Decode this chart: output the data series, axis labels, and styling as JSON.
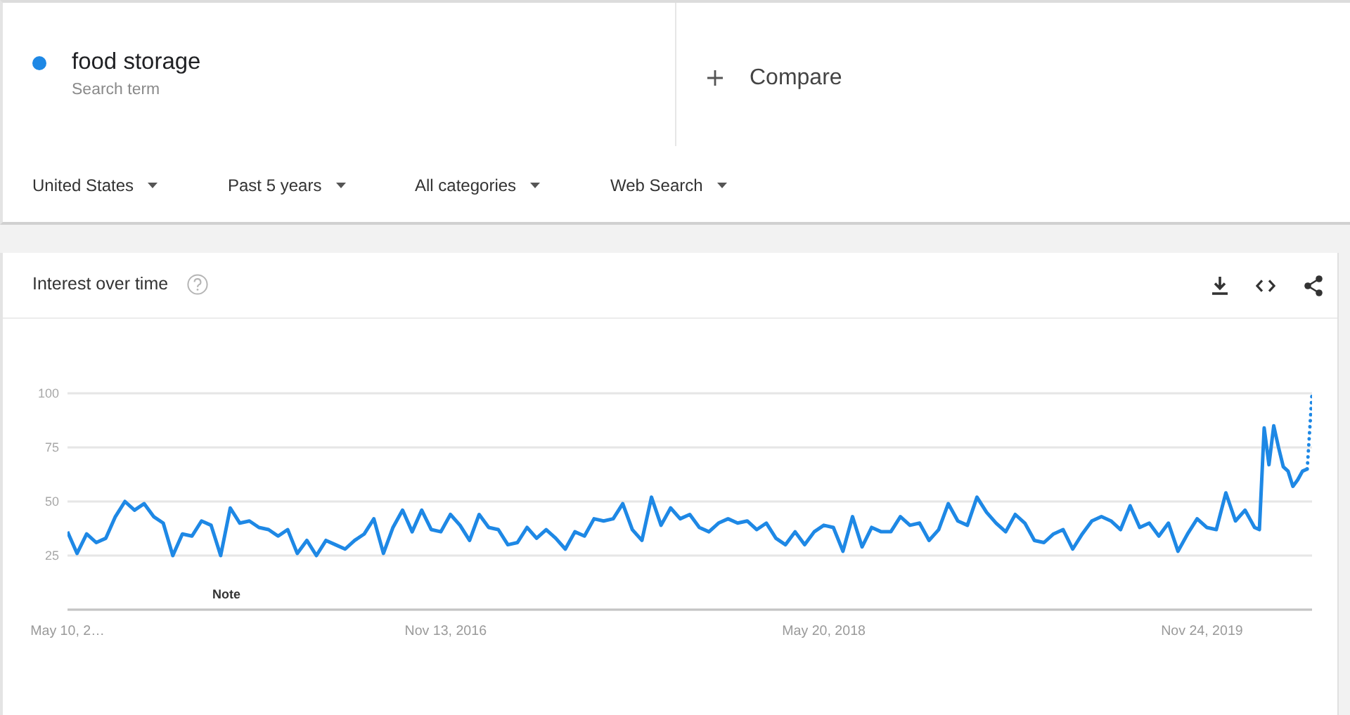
{
  "chart_data": {
    "type": "line",
    "title": "Interest over time",
    "series": [
      {
        "name": "food storage",
        "color": "#1e88e5",
        "x": [
          "2015-05-10",
          "2015-05-24",
          "2015-06-07",
          "2015-06-21",
          "2015-07-05",
          "2015-07-19",
          "2015-08-02",
          "2015-08-16",
          "2015-08-30",
          "2015-09-13",
          "2015-09-27",
          "2015-10-11",
          "2015-10-25",
          "2015-11-08",
          "2015-11-22",
          "2015-12-06",
          "2015-12-20",
          "2016-01-03",
          "2016-01-17",
          "2016-01-31",
          "2016-02-14",
          "2016-02-28",
          "2016-03-13",
          "2016-03-27",
          "2016-04-10",
          "2016-04-24",
          "2016-05-08",
          "2016-05-22",
          "2016-06-05",
          "2016-06-19",
          "2016-07-03",
          "2016-07-17",
          "2016-07-31",
          "2016-08-14",
          "2016-08-28",
          "2016-09-11",
          "2016-09-25",
          "2016-10-09",
          "2016-10-23",
          "2016-11-06",
          "2016-11-20",
          "2016-12-04",
          "2016-12-18",
          "2017-01-01",
          "2017-01-15",
          "2017-01-29",
          "2017-02-12",
          "2017-02-26",
          "2017-03-12",
          "2017-03-26",
          "2017-04-09",
          "2017-04-23",
          "2017-05-07",
          "2017-05-21",
          "2017-06-04",
          "2017-06-18",
          "2017-07-02",
          "2017-07-16",
          "2017-07-30",
          "2017-08-13",
          "2017-08-27",
          "2017-09-10",
          "2017-09-24",
          "2017-10-08",
          "2017-10-22",
          "2017-11-05",
          "2017-11-19",
          "2017-12-03",
          "2017-12-17",
          "2017-12-31",
          "2018-01-14",
          "2018-01-28",
          "2018-02-11",
          "2018-02-25",
          "2018-03-11",
          "2018-03-25",
          "2018-04-08",
          "2018-04-22",
          "2018-05-06",
          "2018-05-20",
          "2018-06-03",
          "2018-06-17",
          "2018-07-01",
          "2018-07-15",
          "2018-07-29",
          "2018-08-12",
          "2018-08-26",
          "2018-09-09",
          "2018-09-23",
          "2018-10-07",
          "2018-10-21",
          "2018-11-04",
          "2018-11-18",
          "2018-12-02",
          "2018-12-16",
          "2018-12-30",
          "2019-01-13",
          "2019-01-27",
          "2019-02-10",
          "2019-02-24",
          "2019-03-10",
          "2019-03-24",
          "2019-04-07",
          "2019-04-21",
          "2019-05-05",
          "2019-05-19",
          "2019-06-02",
          "2019-06-16",
          "2019-06-30",
          "2019-07-14",
          "2019-07-28",
          "2019-08-11",
          "2019-08-25",
          "2019-09-08",
          "2019-09-22",
          "2019-10-06",
          "2019-10-20",
          "2019-11-03",
          "2019-11-17",
          "2019-12-01",
          "2019-12-15",
          "2019-12-29",
          "2020-01-12",
          "2020-01-26",
          "2020-02-09",
          "2020-02-16",
          "2020-02-23",
          "2020-03-01",
          "2020-03-08",
          "2020-03-15",
          "2020-03-22",
          "2020-03-29",
          "2020-04-05",
          "2020-04-12",
          "2020-04-19",
          "2020-04-26"
        ],
        "values": [
          36,
          26,
          35,
          31,
          33,
          43,
          50,
          46,
          49,
          43,
          40,
          25,
          35,
          34,
          41,
          39,
          25,
          47,
          40,
          41,
          38,
          37,
          34,
          37,
          26,
          32,
          25,
          32,
          30,
          28,
          32,
          35,
          42,
          26,
          38,
          46,
          36,
          46,
          37,
          36,
          44,
          39,
          32,
          44,
          38,
          37,
          30,
          31,
          38,
          33,
          37,
          33,
          28,
          36,
          34,
          42,
          41,
          42,
          49,
          37,
          32,
          52,
          39,
          47,
          42,
          44,
          38,
          36,
          40,
          42,
          40,
          41,
          37,
          40,
          33,
          30,
          36,
          30,
          36,
          39,
          38,
          27,
          43,
          29,
          38,
          36,
          36,
          43,
          39,
          40,
          32,
          37,
          49,
          41,
          39,
          52,
          45,
          40,
          36,
          44,
          40,
          32,
          31,
          35,
          37,
          28,
          35,
          41,
          43,
          41,
          37,
          48,
          38,
          40,
          34,
          40,
          27,
          35,
          42,
          38,
          37,
          54,
          41,
          46,
          38,
          37,
          84,
          67,
          85,
          75,
          66,
          64,
          57,
          60,
          64,
          65
        ]
      },
      {
        "color": "#1e88e5",
        "line_style": "dotted",
        "x": [
          "2020-04-26",
          "2020-05-03"
        ],
        "values": [
          65,
          100
        ]
      }
    ],
    "xlim": [
      "2015-05-10",
      "2020-05-03"
    ],
    "xticks": [
      {
        "value": "2015-05-10",
        "label": "May 10, 2…"
      },
      {
        "value": "2016-11-13",
        "label": "Nov 13, 2016"
      },
      {
        "value": "2018-05-20",
        "label": "May 20, 2018"
      },
      {
        "value": "2019-11-24",
        "label": "Nov 24, 2019"
      }
    ],
    "ylim": [
      0,
      100
    ],
    "yticks": [
      25,
      50,
      75,
      100
    ],
    "grid": "y",
    "legend": "top left",
    "annotations": [
      "Search term",
      "Compare",
      "United States",
      "Past 5 years",
      "All categories",
      "Web Search",
      "Note"
    ]
  }
}
